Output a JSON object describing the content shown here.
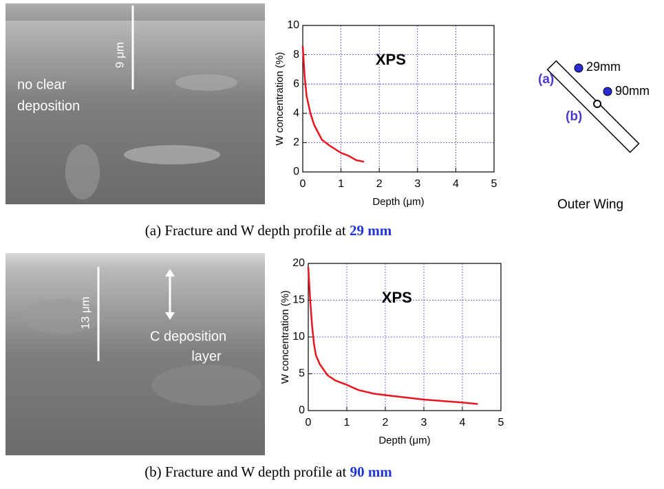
{
  "chart_data": [
    {
      "type": "line",
      "ylabel": "W concentration (%)",
      "xlabel": "Depth (μm)",
      "annotation": "XPS",
      "xlim": [
        0,
        5
      ],
      "xticks": [
        0,
        1,
        2,
        3,
        4,
        5
      ],
      "ylim": [
        0,
        10
      ],
      "yticks": [
        0,
        2,
        4,
        6,
        8,
        10
      ],
      "grid": true,
      "x": [
        0,
        0.05,
        0.1,
        0.2,
        0.3,
        0.5,
        0.7,
        1,
        1.2,
        1.4,
        1.6
      ],
      "series": [
        {
          "color": "#e8141e",
          "values": [
            8.6,
            6.5,
            5.2,
            4,
            3.2,
            2.2,
            1.8,
            1.3,
            1.1,
            0.8,
            0.7
          ]
        }
      ]
    },
    {
      "type": "line",
      "ylabel": "W concentration (%)",
      "xlabel": "Depth (μm)",
      "annotation": "XPS",
      "xlim": [
        0,
        5
      ],
      "xticks": [
        0,
        1,
        2,
        3,
        4,
        5
      ],
      "ylim": [
        0,
        20
      ],
      "yticks": [
        0,
        5,
        10,
        15,
        20
      ],
      "grid": true,
      "x": [
        0,
        0.05,
        0.1,
        0.15,
        0.2,
        0.3,
        0.5,
        0.7,
        1,
        1.3,
        1.7,
        2,
        2.5,
        3,
        3.5,
        4,
        4.4
      ],
      "series": [
        {
          "color": "#e8141e",
          "values": [
            19.5,
            15,
            11.5,
            9,
            7.5,
            6.3,
            4.8,
            4.1,
            3.5,
            2.8,
            2.3,
            2.1,
            1.8,
            1.5,
            1.3,
            1.1,
            0.9
          ]
        }
      ]
    }
  ],
  "images": [
    {
      "scale_label": "9 μm",
      "labels": [
        "no clear",
        "deposition"
      ]
    },
    {
      "scale_label": "13 μm",
      "labels": [
        "C  deposition",
        "layer"
      ]
    }
  ],
  "diagram": {
    "title": "Outer Wing",
    "points": [
      {
        "tag": "(a)",
        "label": "29mm"
      },
      {
        "tag": "(b)",
        "label": "90mm"
      }
    ]
  },
  "captions": [
    {
      "text": "(a) Fracture and W depth profile at",
      "highlight": "29 mm"
    },
    {
      "text": "(b) Fracture and W depth profile at",
      "highlight": "90 mm"
    }
  ]
}
